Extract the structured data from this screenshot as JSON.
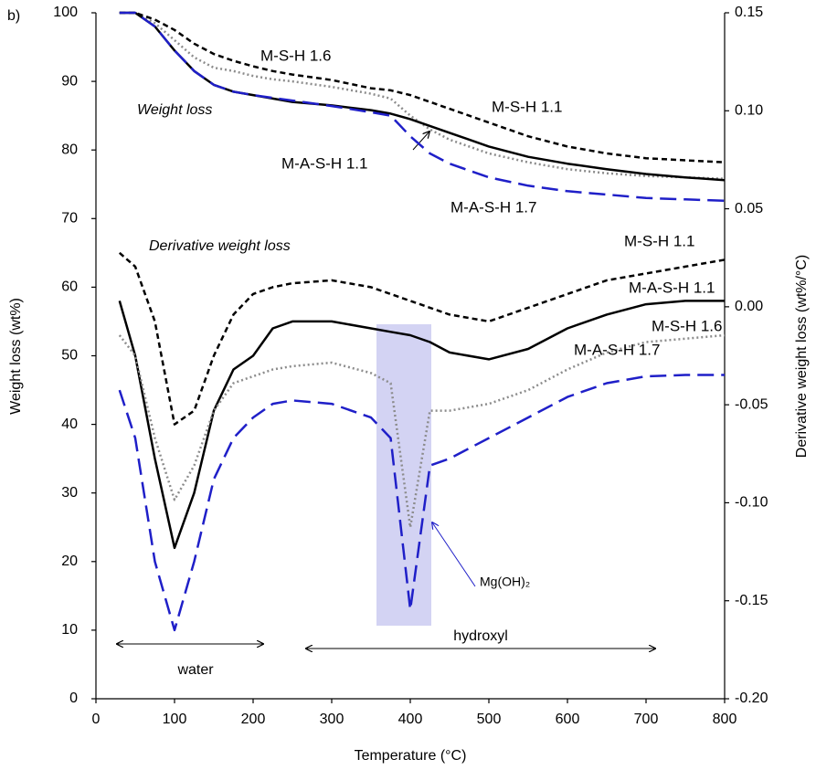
{
  "chart_data": {
    "type": "line",
    "panel_label": "b)",
    "xlabel": "Temperature (°C)",
    "ylabel": "Weight loss (wt%)",
    "y2label": "Derivative weight loss (wt%/°C)",
    "annotations": [
      "Weight loss",
      "Derivative weight loss",
      "water",
      "hydroxyl",
      "Mg(OH)₂"
    ],
    "xlim": [
      0,
      800
    ],
    "xticks": [
      0,
      100,
      200,
      300,
      400,
      500,
      600,
      700,
      800
    ],
    "ylim": [
      0,
      100
    ],
    "yticks": [
      0,
      10,
      20,
      30,
      40,
      50,
      60,
      70,
      80,
      90,
      100
    ],
    "y2lim": [
      -0.2,
      0.15
    ],
    "y2ticks": [
      {
        "value": -0.2,
        "label": "-0.20"
      },
      -0.15,
      {
        "value": -0.1,
        "label": "-0.10"
      },
      -0.05,
      {
        "value": 0,
        "label": "0.00"
      },
      0.05,
      {
        "value": 0.1,
        "label": "0.10"
      },
      0.15
    ],
    "x": [
      30,
      50,
      75,
      100,
      125,
      150,
      175,
      200,
      225,
      250,
      300,
      350,
      375,
      400,
      425,
      450,
      500,
      550,
      600,
      650,
      700,
      750,
      800
    ],
    "series": [
      {
        "name": "M-S-H 1.6",
        "color": "#8c8c8c",
        "style": "dotted",
        "axis": "y",
        "values": [
          100,
          100,
          98.5,
          96,
          93.5,
          92,
          91.5,
          90.8,
          90.3,
          90,
          89.2,
          88.2,
          87.5,
          85,
          83,
          81.5,
          79.5,
          78.2,
          77.2,
          76.6,
          76.2,
          76,
          75.8
        ]
      },
      {
        "name": "M-S-H 1.1",
        "color": "#000000",
        "style": "dashed",
        "axis": "y",
        "values": [
          100,
          100,
          99,
          97.5,
          95.5,
          94,
          93,
          92.2,
          91.5,
          91,
          90.2,
          89,
          88.7,
          88,
          87,
          86,
          84,
          82,
          80.5,
          79.5,
          78.8,
          78.5,
          78.2
        ]
      },
      {
        "name": "M-A-S-H 1.1",
        "color": "#000000",
        "style": "solid",
        "axis": "y",
        "values": [
          100,
          100,
          98,
          94.5,
          91.5,
          89.5,
          88.5,
          88,
          87.5,
          87,
          86.5,
          85.8,
          85.3,
          84.5,
          83.5,
          82.5,
          80.5,
          79,
          78,
          77.2,
          76.5,
          76,
          75.6
        ]
      },
      {
        "name": "M-A-S-H 1.7",
        "color": "#1f1fc8",
        "style": "longdash",
        "axis": "y",
        "values": [
          100,
          100,
          98,
          94.5,
          91.5,
          89.5,
          88.5,
          88,
          87.6,
          87.2,
          86.4,
          85.5,
          85,
          82,
          79.5,
          78,
          76,
          74.8,
          74,
          73.5,
          73,
          72.8,
          72.6
        ]
      },
      {
        "name": "M-S-H 1.1",
        "color": "#000000",
        "style": "dashed",
        "axis": "y2",
        "values": [
          0.0275,
          0.0205,
          -0.0075,
          -0.06,
          -0.053,
          -0.025,
          -0.004,
          0.0065,
          0.01,
          0.012,
          0.0135,
          0.01,
          0.0065,
          0.003,
          -0.0005,
          -0.004,
          -0.0075,
          -0.0005,
          0.0065,
          0.0135,
          0.017,
          0.0205,
          0.024
        ]
      },
      {
        "name": "M-A-S-H 1.1",
        "color": "#000000",
        "style": "solid",
        "axis": "y2",
        "values": [
          0.003,
          -0.025,
          -0.0775,
          -0.123,
          -0.095,
          -0.053,
          -0.032,
          -0.025,
          -0.011,
          -0.0075,
          -0.0075,
          -0.011,
          -0.0128,
          -0.0145,
          -0.018,
          -0.0233,
          -0.0268,
          -0.0215,
          -0.011,
          -0.004,
          0.0013,
          0.003,
          0.003
        ]
      },
      {
        "name": "M-S-H 1.6",
        "color": "#8c8c8c",
        "style": "dotted",
        "axis": "y2",
        "values": [
          -0.0145,
          -0.025,
          -0.067,
          -0.0985,
          -0.081,
          -0.053,
          -0.039,
          -0.0355,
          -0.032,
          -0.0303,
          -0.0285,
          -0.0338,
          -0.039,
          -0.1125,
          -0.053,
          -0.053,
          -0.0495,
          -0.0425,
          -0.032,
          -0.0233,
          -0.018,
          -0.0163,
          -0.0145
        ]
      },
      {
        "name": "M-A-S-H 1.7",
        "color": "#1f1fc8",
        "style": "longdash",
        "axis": "y2",
        "values": [
          -0.0425,
          -0.067,
          -0.13,
          -0.165,
          -0.13,
          -0.088,
          -0.067,
          -0.0565,
          -0.0495,
          -0.0478,
          -0.0495,
          -0.0565,
          -0.067,
          -0.1545,
          -0.081,
          -0.0775,
          -0.067,
          -0.0565,
          -0.046,
          -0.039,
          -0.0355,
          -0.0348,
          -0.0348
        ]
      }
    ]
  }
}
